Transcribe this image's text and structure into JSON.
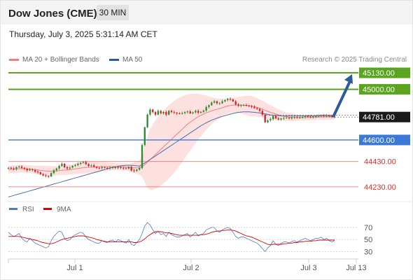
{
  "header": {
    "title": "Dow Jones (CME)",
    "timeframe": "30 MIN"
  },
  "datetime": "Thursday, July 3, 2025 5:31:14 AM CET",
  "legend": {
    "items": [
      {
        "label": "MA 20 + Bollinger Bands",
        "color": "#f08080"
      },
      {
        "label": "MA 50",
        "color": "#2c5b9a"
      }
    ],
    "copyright": "Research © 2025 Trading Central"
  },
  "colors": {
    "up": "#2e8b2e",
    "down": "#d32222",
    "resistance": "#5aa51e",
    "support": "#3b78d8",
    "pivot": "#e06666",
    "arrow": "#2c5b9a",
    "band_fill": "#fde0e0"
  },
  "chart_data": [
    {
      "type": "candlestick",
      "title": "",
      "x_labels": [
        "Jul 1",
        "Jul 2",
        "Jul 3",
        "Jul 13"
      ],
      "ylim": [
        44130,
        45180
      ],
      "levels": [
        {
          "value": 45130,
          "label": "45130.00",
          "kind": "resistance"
        },
        {
          "value": 45000,
          "label": "45000.00",
          "kind": "resistance"
        },
        {
          "value": 44781,
          "label": "44781.00",
          "kind": "last"
        },
        {
          "value": 44600,
          "label": "44600.00",
          "kind": "support"
        },
        {
          "value": 44430,
          "label": "44430.00",
          "kind": "pivot"
        },
        {
          "value": 44230,
          "label": "44230.00",
          "kind": "pivot"
        }
      ],
      "forecast_arrow": {
        "from": 44781,
        "to": 45130
      },
      "close": [
        44380,
        44375,
        44370,
        44385,
        44390,
        44380,
        44372,
        44360,
        44368,
        44362,
        44350,
        44345,
        44330,
        44320,
        44315,
        44312,
        44338,
        44360,
        44375,
        44395,
        44412,
        44385,
        44375,
        44382,
        44395,
        44402,
        44412,
        44420,
        44425,
        44410,
        44395,
        44400,
        44388,
        44380,
        44378,
        44385,
        44380,
        44375,
        44382,
        44384,
        44378,
        44386,
        44380,
        44376,
        44374,
        44388,
        44360,
        44355,
        44366,
        44378,
        44560,
        44700,
        44800,
        44840,
        44820,
        44800,
        44830,
        44810,
        44820,
        44800,
        44830,
        44820,
        44815,
        44810,
        44808,
        44812,
        44820,
        44825,
        44810,
        44818,
        44830,
        44815,
        44822,
        44832,
        44860,
        44875,
        44895,
        44905,
        44890,
        44890,
        44905,
        44915,
        44925,
        44920,
        44905,
        44880,
        44870,
        44875,
        44875,
        44872,
        44868,
        44862,
        44852,
        44845,
        44830,
        44800,
        44740,
        44755,
        44765,
        44790,
        44770,
        44762,
        44770,
        44774,
        44776,
        44770,
        44778,
        44780,
        44775,
        44778,
        44782,
        44788,
        44784,
        44780,
        44786,
        44788,
        44790,
        44795,
        44790,
        44794,
        44788,
        44782,
        44784
      ],
      "ma20": [
        44366,
        44368,
        44370,
        44372,
        44373,
        44373,
        44373,
        44371,
        44370,
        44368,
        44366,
        44363,
        44360,
        44357,
        44355,
        44354,
        44354,
        44355,
        44356,
        44358,
        44361,
        44362,
        44364,
        44366,
        44369,
        44372,
        44375,
        44378,
        44381,
        44383,
        44385,
        44386,
        44387,
        44388,
        44389,
        44390,
        44390,
        44390,
        44390,
        44390,
        44390,
        44390,
        44389,
        44388,
        44386,
        44384,
        44382,
        44381,
        44380,
        44381,
        44390,
        44405,
        44425,
        44445,
        44465,
        44485,
        44505,
        44525,
        44545,
        44565,
        44585,
        44605,
        44625,
        44645,
        44665,
        44685,
        44705,
        44725,
        44740,
        44755,
        44770,
        44785,
        44795,
        44805,
        44815,
        44822,
        44830,
        44837,
        44842,
        44848,
        44855,
        44862,
        44868,
        44872,
        44875,
        44876,
        44876,
        44876,
        44875,
        44873,
        44870,
        44866,
        44862,
        44857,
        44851,
        44844,
        44834,
        44826,
        44818,
        44812,
        44805,
        44798,
        44792,
        44787,
        44784,
        44781,
        44779,
        44778,
        44777,
        44777,
        44777,
        44777,
        44778,
        44778,
        44779,
        44779,
        44780,
        44781,
        44781,
        44782,
        44782,
        44782,
        44782
      ],
      "band_width": [
        30,
        30,
        30,
        30,
        30,
        30,
        30,
        30,
        30,
        30,
        32,
        34,
        36,
        38,
        40,
        40,
        40,
        38,
        36,
        36,
        38,
        40,
        40,
        40,
        40,
        42,
        44,
        46,
        48,
        48,
        48,
        46,
        44,
        42,
        40,
        38,
        36,
        34,
        32,
        30,
        28,
        28,
        28,
        28,
        28,
        30,
        34,
        40,
        48,
        56,
        80,
        140,
        200,
        240,
        260,
        270,
        280,
        285,
        288,
        290,
        290,
        288,
        284,
        278,
        270,
        260,
        248,
        236,
        224,
        210,
        196,
        180,
        166,
        150,
        136,
        120,
        108,
        96,
        86,
        78,
        70,
        64,
        60,
        58,
        58,
        60,
        64,
        68,
        72,
        76,
        80,
        80,
        78,
        74,
        70,
        66,
        64,
        60,
        56,
        52,
        48,
        44,
        40,
        36,
        34,
        32,
        30,
        28,
        26,
        24,
        24,
        22,
        22,
        22,
        22,
        22,
        22,
        22,
        22,
        22,
        22,
        22,
        22
      ],
      "ma50": [
        44150,
        44156,
        44162,
        44168,
        44174,
        44180,
        44186,
        44192,
        44198,
        44204,
        44210,
        44216,
        44222,
        44228,
        44234,
        44240,
        44246,
        44252,
        44258,
        44264,
        44270,
        44276,
        44282,
        44288,
        44294,
        44300,
        44306,
        44312,
        44318,
        44324,
        44330,
        44336,
        44342,
        44348,
        44354,
        44360,
        44366,
        44372,
        44378,
        44384,
        44388,
        44392,
        44396,
        44398,
        44400,
        44400,
        44400,
        44398,
        44396,
        44394,
        44405,
        44418,
        44432,
        44446,
        44460,
        44474,
        44488,
        44502,
        44516,
        44530,
        44544,
        44558,
        44572,
        44586,
        44600,
        44614,
        44628,
        44642,
        44656,
        44670,
        44684,
        44698,
        44712,
        44724,
        44736,
        44746,
        44756,
        44764,
        44772,
        44780,
        44786,
        44792,
        44798,
        44804,
        44810,
        44814,
        44818,
        44820,
        44822,
        44822,
        44822,
        44820,
        44818,
        44816,
        44814,
        44810,
        44806,
        44802,
        44798,
        44796,
        44794,
        44792,
        44790,
        44790,
        44790,
        44790,
        44790,
        44790,
        44790,
        44790,
        44790,
        44790,
        44790,
        44790,
        44790,
        44790,
        44790,
        44790,
        44790,
        44790,
        44790,
        44790,
        44790
      ],
      "rsi_ylim": [
        20,
        85
      ],
      "rsi_levels": [
        70,
        50,
        30
      ],
      "rsi": [
        62,
        58,
        55,
        57,
        60,
        52,
        48,
        46,
        52,
        48,
        44,
        42,
        40,
        38,
        36,
        38,
        48,
        55,
        60,
        64,
        62,
        52,
        48,
        50,
        55,
        58,
        60,
        62,
        60,
        54,
        50,
        48,
        46,
        44,
        44,
        48,
        46,
        45,
        48,
        49,
        46,
        50,
        48,
        46,
        44,
        50,
        42,
        40,
        45,
        50,
        60,
        72,
        78,
        74,
        66,
        60,
        64,
        58,
        60,
        55,
        62,
        58,
        56,
        54,
        54,
        56,
        58,
        60,
        54,
        58,
        62,
        56,
        58,
        60,
        66,
        68,
        70,
        70,
        64,
        62,
        66,
        68,
        70,
        68,
        62,
        55,
        52,
        54,
        54,
        52,
        50,
        48,
        46,
        44,
        40,
        35,
        30,
        36,
        40,
        48,
        42,
        40,
        44,
        46,
        46,
        44,
        47,
        48,
        46,
        48,
        50,
        52,
        50,
        48,
        50,
        52,
        52,
        54,
        50,
        52,
        48,
        46,
        48
      ],
      "rsi_ma": [
        55,
        55,
        55,
        55,
        55,
        54,
        53,
        52,
        51,
        50,
        49,
        48,
        46,
        45,
        44,
        43,
        43,
        44,
        46,
        48,
        50,
        51,
        52,
        53,
        54,
        55,
        56,
        56,
        56,
        55,
        54,
        53,
        52,
        50,
        49,
        48,
        47,
        46,
        46,
        46,
        46,
        46,
        46,
        46,
        46,
        46,
        46,
        45,
        45,
        46,
        48,
        51,
        55,
        58,
        61,
        63,
        63,
        63,
        62,
        61,
        61,
        60,
        59,
        58,
        57,
        57,
        57,
        57,
        57,
        57,
        57,
        57,
        58,
        58,
        59,
        60,
        62,
        63,
        64,
        64,
        65,
        65,
        66,
        66,
        65,
        64,
        62,
        60,
        58,
        56,
        55,
        54,
        52,
        50,
        48,
        46,
        44,
        42,
        41,
        42,
        42,
        42,
        42,
        43,
        43,
        44,
        44,
        45,
        45,
        46,
        46,
        47,
        47,
        47,
        48,
        48,
        49,
        49,
        49,
        49,
        49,
        49,
        49
      ],
      "rsi_legend": [
        {
          "label": "RSI",
          "color": "#4a7bd0"
        },
        {
          "label": "9MA",
          "color": "#e00000"
        }
      ]
    }
  ]
}
